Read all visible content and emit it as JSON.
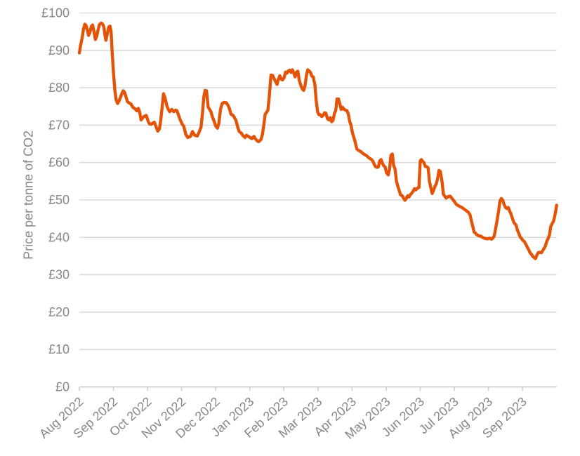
{
  "chart_data": {
    "type": "line",
    "title": "",
    "xlabel": "",
    "ylabel": "Price per tonne of CO2",
    "x_tick_labels": [
      "Aug 2022",
      "Sep 2022",
      "Oct 2022",
      "Nov 2022",
      "Dec 2022",
      "Jan 2023",
      "Feb 2023",
      "Mar 2023",
      "Apr 2023",
      "May 2023",
      "Jun 2023",
      "Jul 2023",
      "Aug 2023",
      "Sep 2023"
    ],
    "y_tick_labels": [
      "£0",
      "£10",
      "£20",
      "£30",
      "£40",
      "£50",
      "£60",
      "£70",
      "£80",
      "£90",
      "£100"
    ],
    "y_ticks": [
      0,
      10,
      20,
      30,
      40,
      50,
      60,
      70,
      80,
      90,
      100
    ],
    "ylim": [
      0,
      100
    ],
    "x_months_span": 14,
    "grid": true,
    "legend": "none",
    "line_color": "#E35409",
    "grid_color": "#DCDCDC",
    "axis_color": "#CFCFCF",
    "text_color": "#8C8580",
    "points_x_unit": "months since Aug 2022",
    "points": [
      [
        0.0,
        89.3
      ],
      [
        0.04,
        91.5
      ],
      [
        0.08,
        93.2
      ],
      [
        0.12,
        95.6
      ],
      [
        0.16,
        97.0
      ],
      [
        0.2,
        96.6
      ],
      [
        0.24,
        95.2
      ],
      [
        0.27,
        94.0
      ],
      [
        0.31,
        94.8
      ],
      [
        0.35,
        96.4
      ],
      [
        0.39,
        96.8
      ],
      [
        0.43,
        95.0
      ],
      [
        0.47,
        92.9
      ],
      [
        0.51,
        93.8
      ],
      [
        0.55,
        95.5
      ],
      [
        0.59,
        96.9
      ],
      [
        0.64,
        97.3
      ],
      [
        0.68,
        97.1
      ],
      [
        0.72,
        96.2
      ],
      [
        0.76,
        93.5
      ],
      [
        0.78,
        92.7
      ],
      [
        0.82,
        94.4
      ],
      [
        0.86,
        96.2
      ],
      [
        0.9,
        96.5
      ],
      [
        0.93,
        95.0
      ],
      [
        0.96,
        90.0
      ],
      [
        1.0,
        84.0
      ],
      [
        1.04,
        79.5
      ],
      [
        1.08,
        76.8
      ],
      [
        1.12,
        75.8
      ],
      [
        1.17,
        76.6
      ],
      [
        1.21,
        77.5
      ],
      [
        1.25,
        78.5
      ],
      [
        1.29,
        79.2
      ],
      [
        1.33,
        78.7
      ],
      [
        1.37,
        77.5
      ],
      [
        1.41,
        76.3
      ],
      [
        1.45,
        76.0
      ],
      [
        1.51,
        75.7
      ],
      [
        1.57,
        74.8
      ],
      [
        1.63,
        74.4
      ],
      [
        1.69,
        73.8
      ],
      [
        1.73,
        74.5
      ],
      [
        1.77,
        73.5
      ],
      [
        1.81,
        71.4
      ],
      [
        1.86,
        72.0
      ],
      [
        1.91,
        72.4
      ],
      [
        1.96,
        72.6
      ],
      [
        2.02,
        71.0
      ],
      [
        2.06,
        70.3
      ],
      [
        2.1,
        70.2
      ],
      [
        2.16,
        70.6
      ],
      [
        2.2,
        70.8
      ],
      [
        2.25,
        69.6
      ],
      [
        2.3,
        68.4
      ],
      [
        2.35,
        69.0
      ],
      [
        2.39,
        71.5
      ],
      [
        2.43,
        75.0
      ],
      [
        2.47,
        78.4
      ],
      [
        2.51,
        77.4
      ],
      [
        2.57,
        75.1
      ],
      [
        2.61,
        74.2
      ],
      [
        2.65,
        73.6
      ],
      [
        2.71,
        74.2
      ],
      [
        2.77,
        73.6
      ],
      [
        2.82,
        74.0
      ],
      [
        2.86,
        73.9
      ],
      [
        2.92,
        72.4
      ],
      [
        2.96,
        71.4
      ],
      [
        3.02,
        70.2
      ],
      [
        3.06,
        69.8
      ],
      [
        3.12,
        67.6
      ],
      [
        3.18,
        66.7
      ],
      [
        3.26,
        67.0
      ],
      [
        3.32,
        68.3
      ],
      [
        3.38,
        67.3
      ],
      [
        3.46,
        67.1
      ],
      [
        3.52,
        68.3
      ],
      [
        3.57,
        69.5
      ],
      [
        3.61,
        73.0
      ],
      [
        3.65,
        77.5
      ],
      [
        3.69,
        79.3
      ],
      [
        3.73,
        79.2
      ],
      [
        3.78,
        74.8
      ],
      [
        3.82,
        74.2
      ],
      [
        3.86,
        73.6
      ],
      [
        3.9,
        72.3
      ],
      [
        3.95,
        71.1
      ],
      [
        4.0,
        69.8
      ],
      [
        4.05,
        69.2
      ],
      [
        4.09,
        70.4
      ],
      [
        4.14,
        74.2
      ],
      [
        4.19,
        75.8
      ],
      [
        4.25,
        76.1
      ],
      [
        4.31,
        76.0
      ],
      [
        4.36,
        75.3
      ],
      [
        4.4,
        74.5
      ],
      [
        4.45,
        72.9
      ],
      [
        4.51,
        72.6
      ],
      [
        4.55,
        72.0
      ],
      [
        4.59,
        71.4
      ],
      [
        4.65,
        69.3
      ],
      [
        4.69,
        68.3
      ],
      [
        4.75,
        67.9
      ],
      [
        4.79,
        67.3
      ],
      [
        4.86,
        66.7
      ],
      [
        4.9,
        67.3
      ],
      [
        4.96,
        67.0
      ],
      [
        5.01,
        66.7
      ],
      [
        5.06,
        66.4
      ],
      [
        5.12,
        67.0
      ],
      [
        5.16,
        66.4
      ],
      [
        5.22,
        65.8
      ],
      [
        5.26,
        65.6
      ],
      [
        5.33,
        66.2
      ],
      [
        5.37,
        67.5
      ],
      [
        5.41,
        70.0
      ],
      [
        5.45,
        72.9
      ],
      [
        5.49,
        73.4
      ],
      [
        5.53,
        74.0
      ],
      [
        5.57,
        77.5
      ],
      [
        5.62,
        83.4
      ],
      [
        5.67,
        83.3
      ],
      [
        5.72,
        82.3
      ],
      [
        5.76,
        81.6
      ],
      [
        5.8,
        80.9
      ],
      [
        5.84,
        82.3
      ],
      [
        5.88,
        83.2
      ],
      [
        5.92,
        82.3
      ],
      [
        5.96,
        82.1
      ],
      [
        6.01,
        82.8
      ],
      [
        6.05,
        84.2
      ],
      [
        6.09,
        83.9
      ],
      [
        6.13,
        84.5
      ],
      [
        6.17,
        84.7
      ],
      [
        6.21,
        84.1
      ],
      [
        6.25,
        84.8
      ],
      [
        6.29,
        83.9
      ],
      [
        6.33,
        82.9
      ],
      [
        6.37,
        84.2
      ],
      [
        6.41,
        84.4
      ],
      [
        6.45,
        82.1
      ],
      [
        6.49,
        80.8
      ],
      [
        6.54,
        79.7
      ],
      [
        6.58,
        79.3
      ],
      [
        6.62,
        80.5
      ],
      [
        6.66,
        83.2
      ],
      [
        6.7,
        84.8
      ],
      [
        6.74,
        84.5
      ],
      [
        6.78,
        84.1
      ],
      [
        6.82,
        83.1
      ],
      [
        6.86,
        82.9
      ],
      [
        6.91,
        80.7
      ],
      [
        6.95,
        76.4
      ],
      [
        6.99,
        73.5
      ],
      [
        7.03,
        72.8
      ],
      [
        7.07,
        72.8
      ],
      [
        7.11,
        72.3
      ],
      [
        7.15,
        72.6
      ],
      [
        7.19,
        73.3
      ],
      [
        7.23,
        73.2
      ],
      [
        7.28,
        71.7
      ],
      [
        7.32,
        71.4
      ],
      [
        7.36,
        72.0
      ],
      [
        7.4,
        70.9
      ],
      [
        7.44,
        71.3
      ],
      [
        7.48,
        73.1
      ],
      [
        7.52,
        73.9
      ],
      [
        7.56,
        77.0
      ],
      [
        7.6,
        77.0
      ],
      [
        7.64,
        75.7
      ],
      [
        7.68,
        74.2
      ],
      [
        7.72,
        74.8
      ],
      [
        7.77,
        74.2
      ],
      [
        7.81,
        74.0
      ],
      [
        7.85,
        73.9
      ],
      [
        7.89,
        72.9
      ],
      [
        7.93,
        71.0
      ],
      [
        7.97,
        70.0
      ],
      [
        8.01,
        68.0
      ],
      [
        8.05,
        66.8
      ],
      [
        8.09,
        65.5
      ],
      [
        8.14,
        63.6
      ],
      [
        8.2,
        63.2
      ],
      [
        8.26,
        62.9
      ],
      [
        8.32,
        62.4
      ],
      [
        8.38,
        62.1
      ],
      [
        8.44,
        61.7
      ],
      [
        8.5,
        61.2
      ],
      [
        8.57,
        60.8
      ],
      [
        8.61,
        60.4
      ],
      [
        8.65,
        59.5
      ],
      [
        8.69,
        58.9
      ],
      [
        8.73,
        58.7
      ],
      [
        8.77,
        58.8
      ],
      [
        8.81,
        60.4
      ],
      [
        8.85,
        60.8
      ],
      [
        8.89,
        59.8
      ],
      [
        8.93,
        59.1
      ],
      [
        8.97,
        58.8
      ],
      [
        9.01,
        57.3
      ],
      [
        9.06,
        56.7
      ],
      [
        9.1,
        58.3
      ],
      [
        9.14,
        61.9
      ],
      [
        9.18,
        62.3
      ],
      [
        9.22,
        59.2
      ],
      [
        9.26,
        58.3
      ],
      [
        9.3,
        55.1
      ],
      [
        9.34,
        53.7
      ],
      [
        9.38,
        52.6
      ],
      [
        9.42,
        51.4
      ],
      [
        9.47,
        51.1
      ],
      [
        9.51,
        50.5
      ],
      [
        9.55,
        49.9
      ],
      [
        9.59,
        50.4
      ],
      [
        9.63,
        51.1
      ],
      [
        9.67,
        50.8
      ],
      [
        9.71,
        51.4
      ],
      [
        9.75,
        51.8
      ],
      [
        9.79,
        52.3
      ],
      [
        9.83,
        53.0
      ],
      [
        9.87,
        52.7
      ],
      [
        9.91,
        53.1
      ],
      [
        9.96,
        53.3
      ],
      [
        10.0,
        60.4
      ],
      [
        10.03,
        60.8
      ],
      [
        10.07,
        60.3
      ],
      [
        10.11,
        60.0
      ],
      [
        10.15,
        58.9
      ],
      [
        10.19,
        58.9
      ],
      [
        10.23,
        58.6
      ],
      [
        10.27,
        55.0
      ],
      [
        10.31,
        53.2
      ],
      [
        10.35,
        51.7
      ],
      [
        10.39,
        52.6
      ],
      [
        10.43,
        53.6
      ],
      [
        10.47,
        54.3
      ],
      [
        10.51,
        55.8
      ],
      [
        10.55,
        57.9
      ],
      [
        10.59,
        57.6
      ],
      [
        10.64,
        54.8
      ],
      [
        10.68,
        51.5
      ],
      [
        10.72,
        51.0
      ],
      [
        10.76,
        50.5
      ],
      [
        10.82,
        50.9
      ],
      [
        10.88,
        51.0
      ],
      [
        10.94,
        50.3
      ],
      [
        11.0,
        49.6
      ],
      [
        11.06,
        48.8
      ],
      [
        11.13,
        48.4
      ],
      [
        11.19,
        48.1
      ],
      [
        11.25,
        47.8
      ],
      [
        11.31,
        47.4
      ],
      [
        11.37,
        47.0
      ],
      [
        11.41,
        46.7
      ],
      [
        11.46,
        46.0
      ],
      [
        11.5,
        44.4
      ],
      [
        11.54,
        42.9
      ],
      [
        11.58,
        41.4
      ],
      [
        11.62,
        41.1
      ],
      [
        11.66,
        40.7
      ],
      [
        11.72,
        40.4
      ],
      [
        11.78,
        40.3
      ],
      [
        11.84,
        39.9
      ],
      [
        11.91,
        39.7
      ],
      [
        11.97,
        39.6
      ],
      [
        12.03,
        39.8
      ],
      [
        12.09,
        39.5
      ],
      [
        12.13,
        39.8
      ],
      [
        12.17,
        40.4
      ],
      [
        12.21,
        42.3
      ],
      [
        12.25,
        44.3
      ],
      [
        12.3,
        47.2
      ],
      [
        12.34,
        49.8
      ],
      [
        12.38,
        50.4
      ],
      [
        12.42,
        49.9
      ],
      [
        12.46,
        48.8
      ],
      [
        12.5,
        48.0
      ],
      [
        12.54,
        47.7
      ],
      [
        12.58,
        48.0
      ],
      [
        12.62,
        47.1
      ],
      [
        12.66,
        46.3
      ],
      [
        12.71,
        44.9
      ],
      [
        12.75,
        43.9
      ],
      [
        12.81,
        43.3
      ],
      [
        12.85,
        41.9
      ],
      [
        12.89,
        41.1
      ],
      [
        12.93,
        40.1
      ],
      [
        12.97,
        39.7
      ],
      [
        13.01,
        39.2
      ],
      [
        13.05,
        38.9
      ],
      [
        13.09,
        38.3
      ],
      [
        13.14,
        37.4
      ],
      [
        13.18,
        36.7
      ],
      [
        13.22,
        35.9
      ],
      [
        13.26,
        35.5
      ],
      [
        13.3,
        34.9
      ],
      [
        13.34,
        34.6
      ],
      [
        13.38,
        34.3
      ],
      [
        13.42,
        35.2
      ],
      [
        13.46,
        35.9
      ],
      [
        13.5,
        36.0
      ],
      [
        13.55,
        35.9
      ],
      [
        13.59,
        36.4
      ],
      [
        13.63,
        37.0
      ],
      [
        13.67,
        37.7
      ],
      [
        13.71,
        38.9
      ],
      [
        13.75,
        39.7
      ],
      [
        13.79,
        40.6
      ],
      [
        13.83,
        42.9
      ],
      [
        13.87,
        43.7
      ],
      [
        13.91,
        44.3
      ],
      [
        13.94,
        45.5
      ],
      [
        13.97,
        46.8
      ],
      [
        14.0,
        48.6
      ]
    ]
  }
}
